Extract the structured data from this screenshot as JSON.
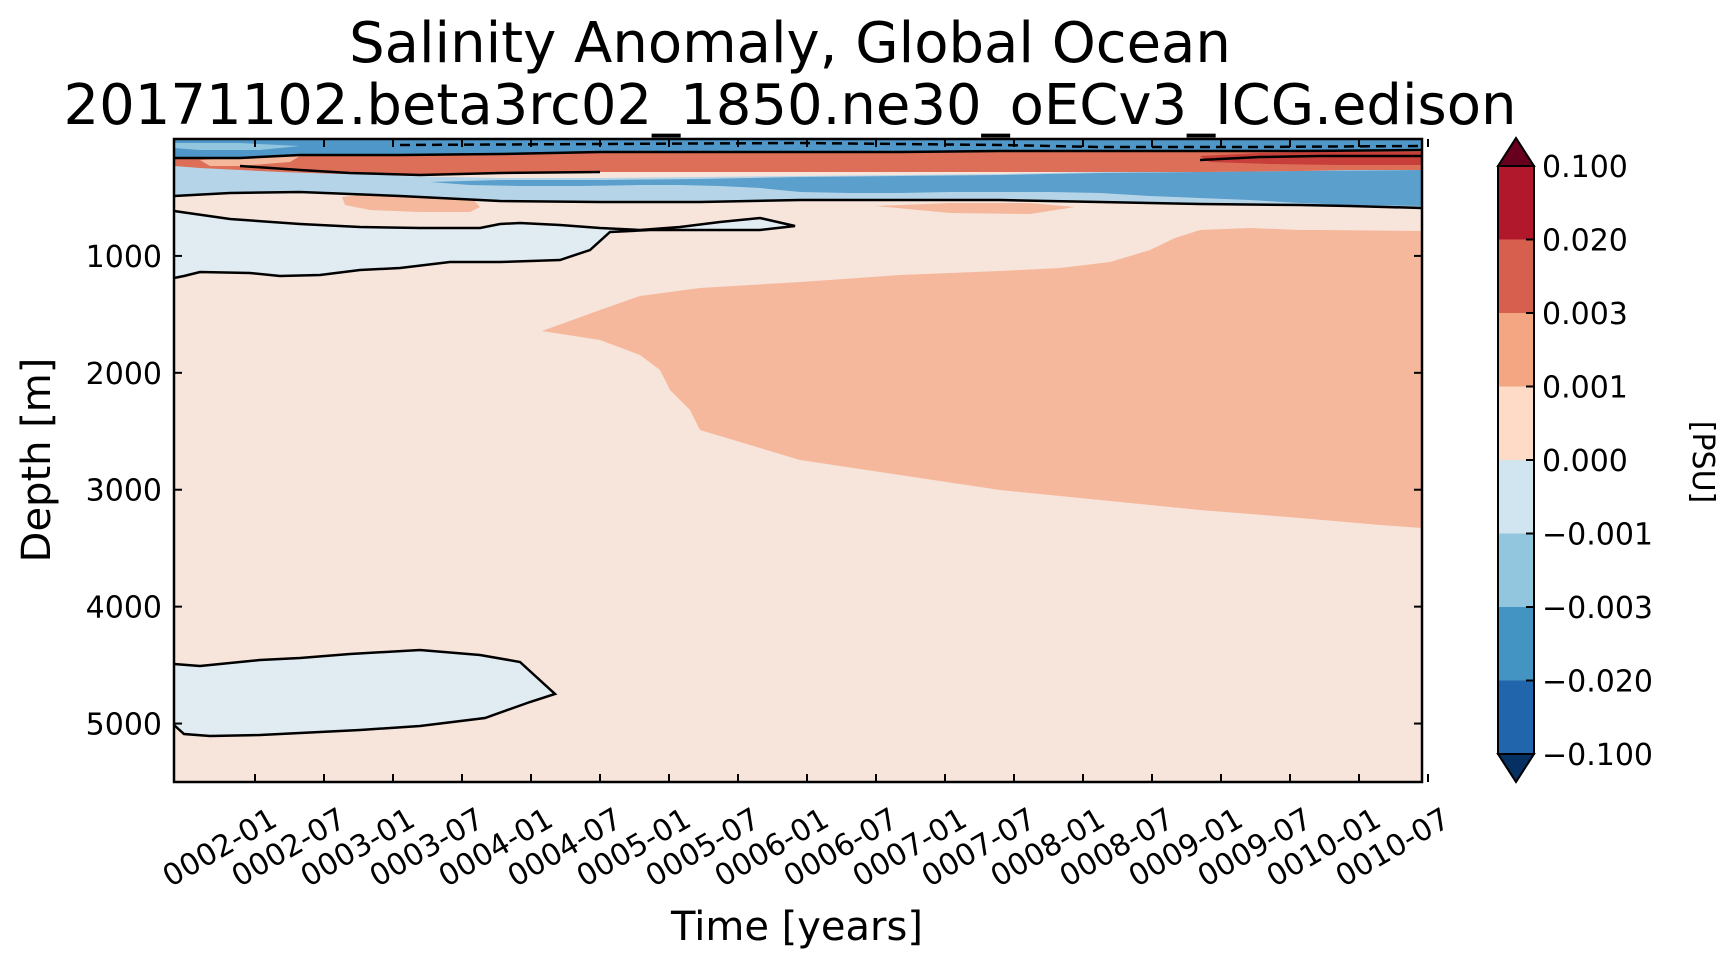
{
  "chart_data": {
    "type": "contourf",
    "title": "Salinity Anomaly, Global Ocean",
    "subtitle": "20171102.beta3rc02_1850.ne30_oECv3_ICG.edison",
    "xlabel": "Time [years]",
    "ylabel": "Depth [m]",
    "x_ticks": [
      "0002-01",
      "0002-07",
      "0003-01",
      "0003-07",
      "0004-01",
      "0004-07",
      "0005-01",
      "0005-07",
      "0006-01",
      "0006-07",
      "0007-01",
      "0007-07",
      "0008-01",
      "0008-07",
      "0009-01",
      "0009-07",
      "0010-01",
      "0010-07"
    ],
    "xlim": [
      1.37,
      10.52
    ],
    "y_ticks": [
      1000,
      2000,
      3000,
      4000,
      5000
    ],
    "ylim": [
      5500,
      0
    ],
    "y_inverted": true,
    "colorbar": {
      "label": "[PSU]",
      "levels": [
        "0.100",
        "0.020",
        "0.003",
        "0.001",
        "0.000",
        "−0.001",
        "−0.003",
        "−0.020",
        "−0.100"
      ],
      "colors": [
        "#b2182b",
        "#d6604d",
        "#f4a582",
        "#fddbc7",
        "#d1e5f0",
        "#92c5de",
        "#4393c3",
        "#2166ac"
      ],
      "extend_max_color": "#67001f",
      "extend_min_color": "#053061"
    },
    "regions": [
      {
        "level_range": "0.000 to 0.001",
        "color": "#f7e4da",
        "description": "background"
      },
      {
        "level_range": "-0.001 to 0.000",
        "color": "#e0ebf2",
        "x_range": [
          "0001-07",
          "0006-01"
        ],
        "depth_range": [
          550,
          1200
        ]
      },
      {
        "level_range": "-0.001 to 0.000",
        "color": "#e0ebf2",
        "x_range": [
          "0001-07",
          "0004-07"
        ],
        "depth_range": [
          4350,
          5100
        ]
      },
      {
        "level_range": "0.001 to 0.003",
        "color": "#f6b89c",
        "x_range": [
          "0004-05",
          "0010-07"
        ],
        "depth_range": [
          780,
          3320
        ]
      },
      {
        "level_range": "0.003 to 0.020",
        "color": "#dd6f58",
        "x_range": [
          "0001-07",
          "0010-07"
        ],
        "depth_range": [
          100,
          260
        ]
      },
      {
        "level_range": "-0.020 to -0.003",
        "color": "#4f97c8",
        "x_range": [
          "0001-07",
          "0010-07"
        ],
        "depth_range": [
          0,
          100
        ]
      },
      {
        "level_range": "-0.020 to -0.003",
        "color": "#5b9fcc",
        "x_range": [
          "0006-07",
          "0010-07"
        ],
        "depth_range": [
          300,
          560
        ]
      }
    ]
  }
}
